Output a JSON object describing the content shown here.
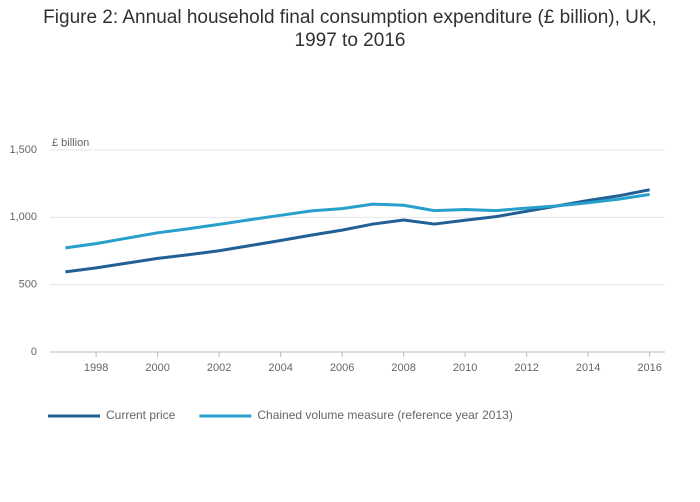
{
  "chart_data": {
    "type": "line",
    "title": "Figure 2: Annual household final consumption expenditure (£ billion), UK, 1997 to 2016",
    "ylabel": "£ billion",
    "x": [
      1997,
      1998,
      1999,
      2000,
      2001,
      2002,
      2003,
      2004,
      2005,
      2006,
      2007,
      2008,
      2009,
      2010,
      2011,
      2012,
      2013,
      2014,
      2015,
      2016
    ],
    "series": [
      {
        "name": "Current price",
        "color": "#206095",
        "values": [
          595,
          625,
          660,
          695,
          722,
          752,
          790,
          828,
          868,
          905,
          950,
          980,
          950,
          978,
          1005,
          1045,
          1085,
          1125,
          1160,
          1205
        ]
      },
      {
        "name": "Chained volume measure (reference year 2013)",
        "color": "#27a0cc",
        "values": [
          773,
          805,
          845,
          885,
          915,
          948,
          982,
          1015,
          1048,
          1065,
          1098,
          1090,
          1050,
          1058,
          1050,
          1068,
          1085,
          1108,
          1135,
          1170
        ]
      }
    ],
    "xlim": [
      1996.5,
      2016.5
    ],
    "xticks": [
      1998,
      2000,
      2002,
      2004,
      2006,
      2008,
      2010,
      2012,
      2014,
      2016
    ],
    "ylim": [
      0,
      1500
    ],
    "yticks": [
      0,
      500,
      {
        "value": 1000,
        "label": "1,000"
      },
      {
        "value": 1500,
        "label": "1,500"
      }
    ],
    "grid": true,
    "legend": "bottom"
  }
}
